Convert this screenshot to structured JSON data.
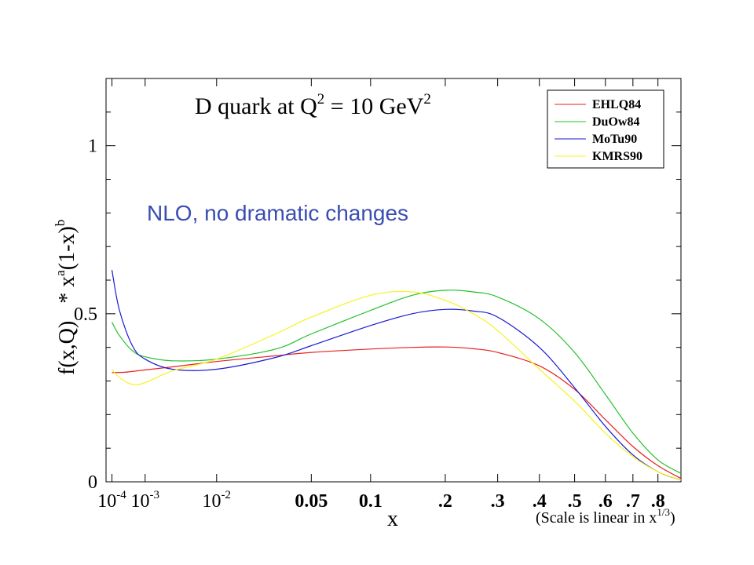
{
  "chart_data": {
    "type": "line",
    "title": {
      "text": "D quark at Q",
      "sup1": "2",
      "rest": " = 10 GeV",
      "sup2": "2"
    },
    "annotation": "NLO, no dramatic changes",
    "ylabel": {
      "part1": "f(x,Q)",
      "part2": "* x",
      "sup_a": "a",
      "part3": "(1-x)",
      "sup_b": "b"
    },
    "xlabel": "x",
    "scale_note": {
      "text": "(Scale is linear in x",
      "sup": "1/3",
      "close": ")"
    },
    "x_scale": "cube-root",
    "xlim": [
      5e-05,
      0.9
    ],
    "ylim": [
      0,
      1.2
    ],
    "x_ticks": [
      {
        "value": 0.0001,
        "base": "10",
        "exp": "-4"
      },
      {
        "value": 0.001,
        "base": "10",
        "exp": "-3"
      },
      {
        "value": 0.01,
        "base": "10",
        "exp": "-2"
      },
      {
        "value": 0.05,
        "label": "0.05"
      },
      {
        "value": 0.1,
        "label": "0.1"
      },
      {
        "value": 0.2,
        "label": ".2"
      },
      {
        "value": 0.3,
        "label": ".3"
      },
      {
        "value": 0.4,
        "label": ".4"
      },
      {
        "value": 0.5,
        "label": ".5"
      },
      {
        "value": 0.6,
        "label": ".6"
      },
      {
        "value": 0.7,
        "label": ".7"
      },
      {
        "value": 0.8,
        "label": ".8"
      }
    ],
    "y_ticks": [
      {
        "value": 0,
        "label": "0"
      },
      {
        "value": 0.5,
        "label": "0.5"
      },
      {
        "value": 1,
        "label": "1"
      }
    ],
    "legend_position": "top-right",
    "series": [
      {
        "name": "EHLQ84",
        "color": "#e8211f",
        "x": [
          0.0001,
          0.0003,
          0.001,
          0.003,
          0.01,
          0.03,
          0.05,
          0.1,
          0.15,
          0.2,
          0.25,
          0.3,
          0.4,
          0.5,
          0.6,
          0.7,
          0.8,
          0.9
        ],
        "y": [
          0.325,
          0.326,
          0.333,
          0.342,
          0.358,
          0.375,
          0.385,
          0.395,
          0.4,
          0.401,
          0.396,
          0.385,
          0.345,
          0.275,
          0.185,
          0.105,
          0.048,
          0.01
        ]
      },
      {
        "name": "DuOw84",
        "color": "#22c02a",
        "x": [
          0.0001,
          0.0002,
          0.0005,
          0.001,
          0.003,
          0.01,
          0.03,
          0.05,
          0.1,
          0.15,
          0.2,
          0.25,
          0.3,
          0.4,
          0.5,
          0.6,
          0.7,
          0.8,
          0.9
        ],
        "y": [
          0.475,
          0.435,
          0.39,
          0.372,
          0.36,
          0.365,
          0.395,
          0.44,
          0.51,
          0.555,
          0.57,
          0.565,
          0.55,
          0.485,
          0.385,
          0.26,
          0.145,
          0.065,
          0.025
        ]
      },
      {
        "name": "MoTu90",
        "color": "#1a1ad0",
        "x": [
          0.0001,
          0.0002,
          0.0005,
          0.001,
          0.003,
          0.01,
          0.03,
          0.05,
          0.1,
          0.15,
          0.2,
          0.25,
          0.3,
          0.4,
          0.5,
          0.6,
          0.7,
          0.8,
          0.9
        ],
        "y": [
          0.63,
          0.51,
          0.405,
          0.365,
          0.335,
          0.335,
          0.37,
          0.405,
          0.465,
          0.5,
          0.513,
          0.508,
          0.49,
          0.4,
          0.28,
          0.165,
          0.08,
          0.03,
          0.005
        ]
      },
      {
        "name": "KMRS90",
        "color": "#f4f41f",
        "x": [
          0.0001,
          0.0002,
          0.0005,
          0.001,
          0.003,
          0.01,
          0.03,
          0.05,
          0.1,
          0.15,
          0.2,
          0.25,
          0.3,
          0.4,
          0.5,
          0.6,
          0.7,
          0.8,
          0.9
        ],
        "y": [
          0.335,
          0.31,
          0.29,
          0.295,
          0.33,
          0.365,
          0.44,
          0.49,
          0.555,
          0.565,
          0.54,
          0.5,
          0.45,
          0.335,
          0.24,
          0.145,
          0.075,
          0.03,
          0.005
        ]
      }
    ]
  }
}
